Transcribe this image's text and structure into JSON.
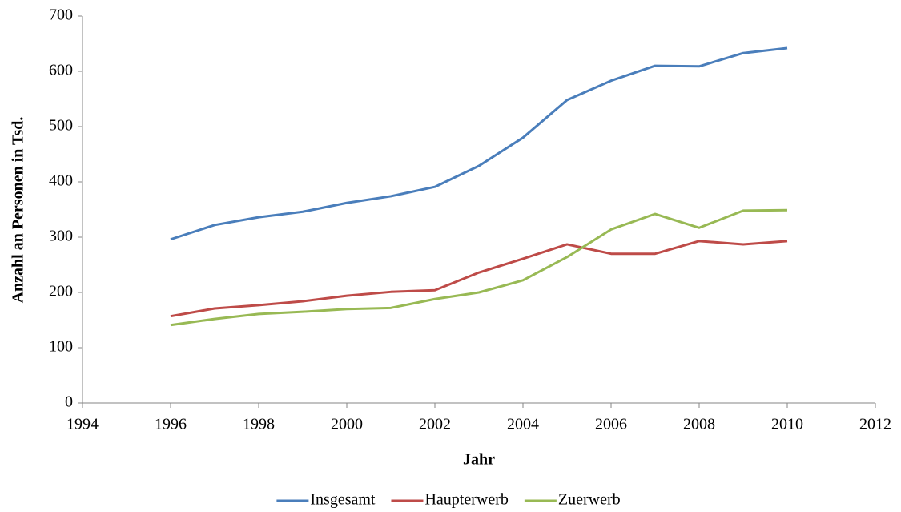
{
  "chart_data": {
    "type": "line",
    "x_label": "Jahr",
    "y_label": "Anzahl an Personen in Tsd.",
    "x": [
      1996,
      1997,
      1998,
      1999,
      2000,
      2001,
      2002,
      2003,
      2004,
      2005,
      2006,
      2007,
      2008,
      2009,
      2010
    ],
    "series": [
      {
        "name": "Insgesamt",
        "color": "#4a7ebb",
        "values": [
          296,
          322,
          336,
          346,
          362,
          374,
          391,
          429,
          480,
          548,
          583,
          610,
          609,
          633,
          642
        ]
      },
      {
        "name": "Haupterwerb",
        "color": "#be4b48",
        "values": [
          157,
          171,
          177,
          184,
          194,
          201,
          204,
          236,
          261,
          287,
          270,
          270,
          293,
          287,
          293
        ]
      },
      {
        "name": "Zuerwerb",
        "color": "#98b954",
        "values": [
          141,
          152,
          161,
          165,
          170,
          172,
          188,
          200,
          222,
          264,
          314,
          342,
          317,
          348,
          349
        ]
      }
    ],
    "xlim": [
      1994,
      2012
    ],
    "xticks": [
      1994,
      1996,
      1998,
      2000,
      2002,
      2004,
      2006,
      2008,
      2010,
      2012
    ],
    "ylim": [
      0,
      700
    ],
    "yticks": [
      0,
      100,
      200,
      300,
      400,
      500,
      600,
      700
    ],
    "grid": false,
    "legend": "bottom"
  }
}
